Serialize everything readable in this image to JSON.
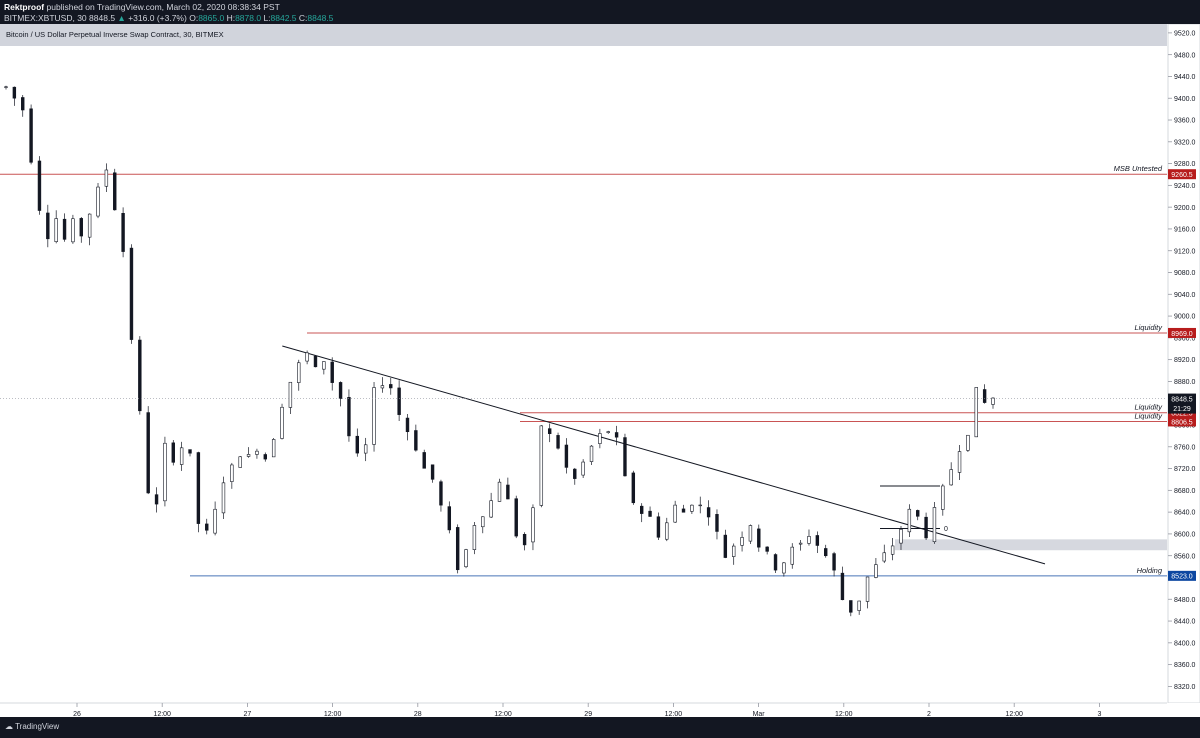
{
  "header": {
    "author": "Rektproof",
    "published_text": "published on TradingView.com, March 02, 2020 08:38:34 PST",
    "symbol": "BITMEX:XBTUSD, 30",
    "last": "8848.5",
    "change": "+316.0 (+3.7%)",
    "open_label": "O:",
    "open": "8865.0",
    "high_label": "H:",
    "high": "8878.0",
    "low_label": "L:",
    "low": "8842.5",
    "close_label": "C:",
    "close": "8848.5"
  },
  "chart_title": "Bitcoin / US Dollar Perpetual Inverse Swap Contract, 30, BITMEX",
  "footer": {
    "brand": "TradingView"
  },
  "chart_data": {
    "type": "candlestick",
    "ylim": [
      8280,
      9540
    ],
    "y_ticks": [
      9520,
      9480,
      9440,
      9400,
      9360,
      9320,
      9280,
      9240,
      9200,
      9160,
      9120,
      9080,
      9040,
      9000,
      8960,
      8920,
      8880,
      8840,
      8800,
      8760,
      8720,
      8680,
      8640,
      8600,
      8560,
      8520,
      8480,
      8440,
      8400,
      8360,
      8320
    ],
    "x_ticks": [
      "26",
      "12:00",
      "27",
      "12:00",
      "28",
      "12:00",
      "29",
      "12:00",
      "Mar",
      "12:00",
      "2",
      "12:00",
      "3"
    ],
    "last_price": {
      "value": "8848.5",
      "countdown": "21:29"
    },
    "levels": [
      {
        "label": "MSB Untested",
        "value": 9260.5,
        "badge": "9260.5",
        "color": "#b71c1c"
      },
      {
        "label": "Liquidity",
        "value": 8969.0,
        "badge": "8969.0",
        "color": "#b71c1c"
      },
      {
        "label": "Liquidity",
        "value": 8822.5,
        "badge": "8822.5",
        "color": "#b71c1c"
      },
      {
        "label": "Liquidity",
        "value": 8806.5,
        "badge": "8806.5",
        "color": "#b71c1c"
      },
      {
        "label": "Holding",
        "value": 8523.0,
        "badge": "8523.0",
        "color": "#0d47a1"
      }
    ],
    "zone": {
      "from": 8570,
      "to": 8590
    },
    "measure_label": "0",
    "trendline": {
      "from": [
        33.0,
        8945
      ],
      "to": [
        131.5,
        8545
      ]
    },
    "path": [
      [
        0,
        9420
      ],
      [
        2,
        9380
      ],
      [
        3,
        9290
      ],
      [
        4,
        9200
      ],
      [
        5,
        9150
      ],
      [
        6,
        9180
      ],
      [
        7,
        9140
      ],
      [
        8,
        9170
      ],
      [
        9,
        9150
      ],
      [
        10,
        9190
      ],
      [
        11,
        9230
      ],
      [
        12,
        9270
      ],
      [
        13,
        9200
      ],
      [
        14,
        9120
      ],
      [
        15,
        8960
      ],
      [
        16,
        8820
      ],
      [
        17,
        8680
      ],
      [
        18,
        8650
      ],
      [
        19,
        8760
      ],
      [
        20,
        8740
      ],
      [
        21,
        8760
      ],
      [
        22,
        8740
      ],
      [
        23,
        8620
      ],
      [
        24,
        8600
      ],
      [
        25,
        8640
      ],
      [
        26,
        8700
      ],
      [
        27,
        8720
      ],
      [
        28,
        8750
      ],
      [
        29,
        8740
      ],
      [
        30,
        8760
      ],
      [
        31,
        8740
      ],
      [
        32,
        8780
      ],
      [
        33,
        8840
      ],
      [
        34,
        8880
      ],
      [
        35,
        8910
      ],
      [
        36,
        8930
      ],
      [
        37,
        8900
      ],
      [
        38,
        8920
      ],
      [
        39,
        8880
      ],
      [
        40,
        8850
      ],
      [
        41,
        8780
      ],
      [
        42,
        8740
      ],
      [
        43,
        8760
      ],
      [
        44,
        8860
      ],
      [
        45,
        8880
      ],
      [
        46,
        8870
      ],
      [
        47,
        8820
      ],
      [
        48,
        8790
      ],
      [
        49,
        8760
      ],
      [
        50,
        8720
      ],
      [
        51,
        8700
      ],
      [
        52,
        8650
      ],
      [
        53,
        8600
      ],
      [
        54,
        8540
      ],
      [
        55,
        8570
      ],
      [
        56,
        8620
      ],
      [
        57,
        8640
      ],
      [
        58,
        8660
      ],
      [
        59,
        8700
      ],
      [
        60,
        8660
      ],
      [
        61,
        8600
      ],
      [
        62,
        8580
      ],
      [
        63,
        8640
      ],
      [
        64,
        8800
      ],
      [
        65,
        8780
      ],
      [
        66,
        8760
      ],
      [
        67,
        8720
      ],
      [
        68,
        8700
      ],
      [
        69,
        8730
      ],
      [
        70,
        8760
      ],
      [
        71,
        8780
      ],
      [
        72,
        8790
      ],
      [
        73,
        8770
      ],
      [
        74,
        8700
      ],
      [
        75,
        8660
      ],
      [
        76,
        8640
      ],
      [
        77,
        8630
      ],
      [
        78,
        8600
      ],
      [
        79,
        8620
      ],
      [
        80,
        8650
      ],
      [
        81,
        8640
      ],
      [
        82,
        8660
      ],
      [
        83,
        8650
      ],
      [
        84,
        8640
      ],
      [
        85,
        8600
      ],
      [
        86,
        8560
      ],
      [
        87,
        8580
      ],
      [
        88,
        8600
      ],
      [
        89,
        8620
      ],
      [
        90,
        8580
      ],
      [
        91,
        8560
      ],
      [
        92,
        8540
      ],
      [
        93,
        8550
      ],
      [
        94,
        8570
      ],
      [
        95,
        8580
      ],
      [
        96,
        8600
      ],
      [
        97,
        8580
      ],
      [
        98,
        8560
      ],
      [
        99,
        8530
      ],
      [
        100,
        8480
      ],
      [
        101,
        8460
      ],
      [
        102,
        8480
      ],
      [
        103,
        8520
      ],
      [
        104,
        8540
      ],
      [
        105,
        8560
      ],
      [
        106,
        8580
      ],
      [
        107,
        8610
      ],
      [
        108,
        8640
      ],
      [
        109,
        8630
      ],
      [
        110,
        8600
      ],
      [
        111,
        8640
      ],
      [
        112,
        8680
      ],
      [
        113,
        8720
      ],
      [
        114,
        8760
      ],
      [
        115,
        8790
      ],
      [
        116,
        8860
      ],
      [
        117,
        8840
      ],
      [
        118,
        8850
      ]
    ]
  }
}
